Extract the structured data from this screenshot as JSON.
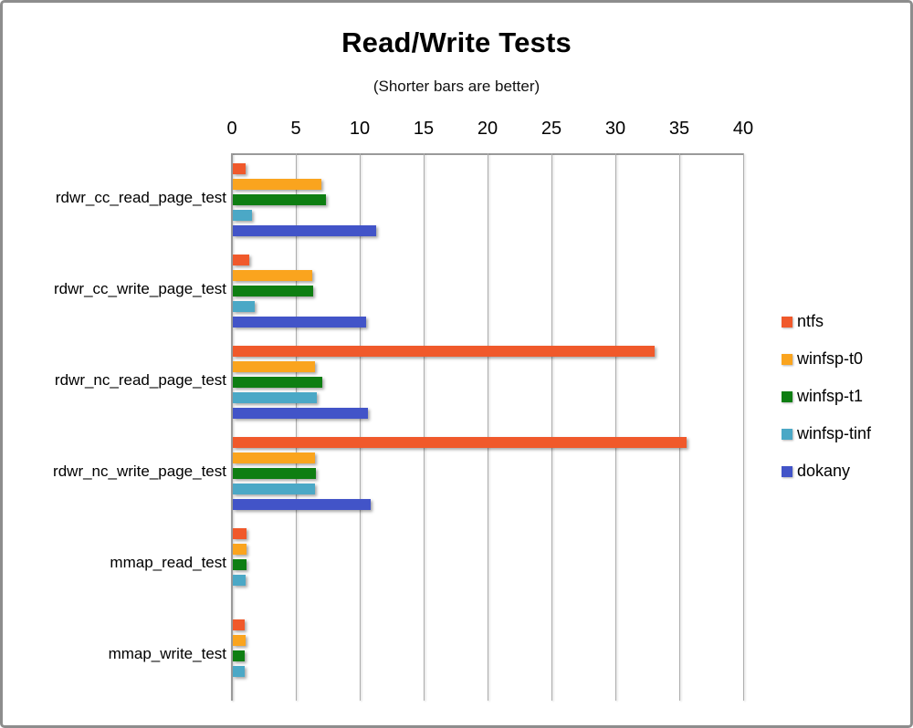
{
  "chart_data": {
    "type": "bar",
    "orientation": "horizontal",
    "title": "Read/Write Tests",
    "subtitle": "(Shorter bars are better)",
    "categories": [
      "rdwr_cc_read_page_test",
      "rdwr_cc_write_page_test",
      "rdwr_nc_read_page_test",
      "rdwr_nc_write_page_test",
      "mmap_read_test",
      "mmap_write_test"
    ],
    "series": [
      {
        "name": "ntfs",
        "color": "#F0592B",
        "values": [
          1.0,
          1.3,
          33.0,
          35.5,
          1.1,
          0.9
        ]
      },
      {
        "name": "winfsp-t0",
        "color": "#FAA41E",
        "values": [
          6.9,
          6.2,
          6.4,
          6.4,
          1.1,
          1.0
        ]
      },
      {
        "name": "winfsp-t1",
        "color": "#0E7E12",
        "values": [
          7.3,
          6.3,
          7.0,
          6.5,
          1.1,
          0.9
        ]
      },
      {
        "name": "winfsp-tinf",
        "color": "#4BA8C6",
        "values": [
          1.5,
          1.7,
          6.6,
          6.4,
          1.0,
          0.9
        ]
      },
      {
        "name": "dokany",
        "color": "#4254C8",
        "values": [
          11.2,
          10.4,
          10.6,
          10.8,
          0,
          0
        ]
      }
    ],
    "x_axis": {
      "min": 0,
      "max": 40,
      "step": 5,
      "ticks": [
        0,
        5,
        10,
        15,
        20,
        25,
        30,
        35,
        40
      ]
    },
    "grid": true,
    "legend_position": "right",
    "shadow_style": "soft-drop-shadows"
  }
}
